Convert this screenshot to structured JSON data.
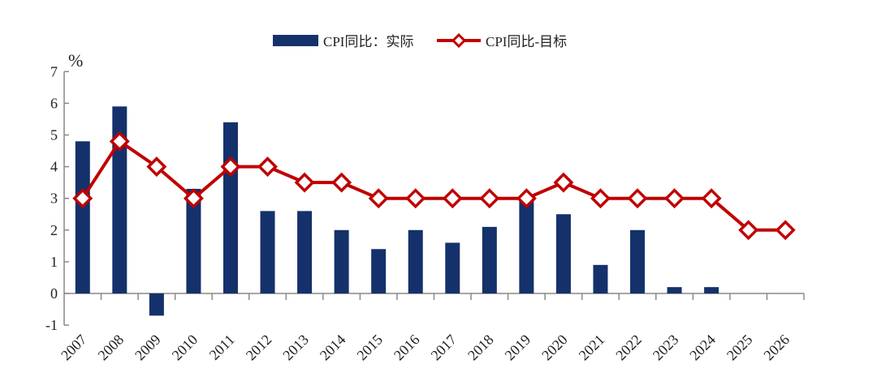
{
  "chart_data": {
    "type": "bar+line",
    "title": "",
    "xlabel": "",
    "ylabel": "%",
    "ylim": [
      -1,
      7
    ],
    "yticks": [
      -1,
      0,
      1,
      2,
      3,
      4,
      5,
      6,
      7
    ],
    "grid": false,
    "legend_position": "top-center",
    "categories": [
      "2007",
      "2008",
      "2009",
      "2010",
      "2011",
      "2012",
      "2013",
      "2014",
      "2015",
      "2016",
      "2017",
      "2018",
      "2019",
      "2020",
      "2021",
      "2022",
      "2023",
      "2024",
      "2025",
      "2026"
    ],
    "series": [
      {
        "name": "CPI同比：实际",
        "type": "bar",
        "color": "#15316b",
        "values": [
          4.8,
          5.9,
          -0.7,
          3.3,
          5.4,
          2.6,
          2.6,
          2.0,
          1.4,
          2.0,
          1.6,
          2.1,
          2.9,
          2.5,
          0.9,
          2.0,
          0.2,
          0.2,
          null,
          null
        ]
      },
      {
        "name": "CPI同比-目标",
        "type": "line",
        "marker": "diamond-open",
        "color": "#c00000",
        "values": [
          3.0,
          4.8,
          4.0,
          3.0,
          4.0,
          4.0,
          3.5,
          3.5,
          3.0,
          3.0,
          3.0,
          3.0,
          3.0,
          3.5,
          3.0,
          3.0,
          3.0,
          3.0,
          2.0,
          2.0
        ]
      }
    ]
  }
}
